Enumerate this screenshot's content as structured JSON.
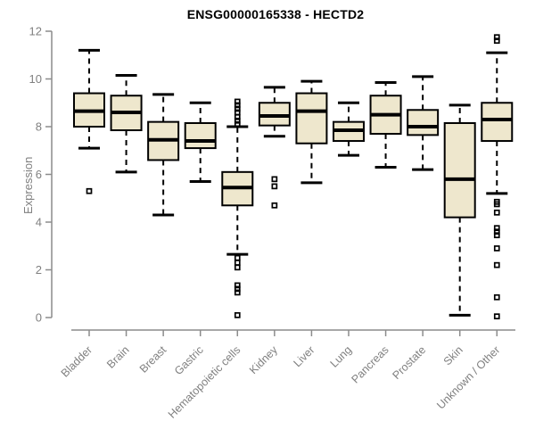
{
  "chart_data": {
    "type": "boxplot",
    "title": "ENSG00000165338 - HECTD2",
    "xlabel": "",
    "ylabel": "Expression",
    "ylim": [
      0,
      12
    ],
    "yticks": [
      0,
      2,
      4,
      6,
      8,
      10,
      12
    ],
    "grid": false,
    "legend": null,
    "categories": [
      "Bladder",
      "Brain",
      "Breast",
      "Gastric",
      "Hematopoietic cells",
      "Kidney",
      "Liver",
      "Lung",
      "Pancreas",
      "Prostate",
      "Skin",
      "Unknown / Other"
    ],
    "boxes": [
      {
        "category": "Bladder",
        "whisker_low": 7.1,
        "q1": 8.0,
        "median": 8.65,
        "q3": 9.4,
        "whisker_high": 11.2,
        "outliers": [
          5.3
        ]
      },
      {
        "category": "Brain",
        "whisker_low": 6.1,
        "q1": 7.85,
        "median": 8.6,
        "q3": 9.3,
        "whisker_high": 10.15,
        "outliers": []
      },
      {
        "category": "Breast",
        "whisker_low": 4.3,
        "q1": 6.6,
        "median": 7.45,
        "q3": 8.2,
        "whisker_high": 9.35,
        "outliers": []
      },
      {
        "category": "Gastric",
        "whisker_low": 5.7,
        "q1": 7.1,
        "median": 7.4,
        "q3": 8.15,
        "whisker_high": 9.0,
        "outliers": []
      },
      {
        "category": "Hematopoietic cells",
        "whisker_low": 2.65,
        "q1": 4.7,
        "median": 5.45,
        "q3": 6.1,
        "whisker_high": 8.0,
        "outliers": [
          9.05,
          8.9,
          8.75,
          8.6,
          8.4,
          8.25,
          8.1,
          2.5,
          2.3,
          2.1,
          1.35,
          1.2,
          1.05,
          0.1
        ]
      },
      {
        "category": "Kidney",
        "whisker_low": 7.6,
        "q1": 8.05,
        "median": 8.45,
        "q3": 9.0,
        "whisker_high": 9.65,
        "outliers": [
          5.8,
          5.5,
          4.7
        ]
      },
      {
        "category": "Liver",
        "whisker_low": 5.65,
        "q1": 7.3,
        "median": 8.65,
        "q3": 9.4,
        "whisker_high": 9.9,
        "outliers": []
      },
      {
        "category": "Lung",
        "whisker_low": 6.8,
        "q1": 7.4,
        "median": 7.85,
        "q3": 8.2,
        "whisker_high": 9.0,
        "outliers": []
      },
      {
        "category": "Pancreas",
        "whisker_low": 6.3,
        "q1": 7.7,
        "median": 8.5,
        "q3": 9.3,
        "whisker_high": 9.85,
        "outliers": []
      },
      {
        "category": "Prostate",
        "whisker_low": 6.2,
        "q1": 7.65,
        "median": 8.0,
        "q3": 8.7,
        "whisker_high": 10.1,
        "outliers": []
      },
      {
        "category": "Skin",
        "whisker_low": 0.1,
        "q1": 4.2,
        "median": 5.8,
        "q3": 8.15,
        "whisker_high": 8.9,
        "outliers": []
      },
      {
        "category": "Unknown / Other",
        "whisker_low": 5.2,
        "q1": 7.4,
        "median": 8.3,
        "q3": 9.0,
        "whisker_high": 11.1,
        "outliers": [
          11.75,
          11.6,
          4.85,
          4.75,
          4.4,
          3.75,
          3.6,
          3.45,
          2.9,
          2.2,
          0.85,
          0.05
        ]
      }
    ],
    "colors": {
      "box_fill": "#EEE7CD",
      "box_border": "#000000",
      "median": "#000000",
      "whisker": "#000000",
      "outlier": "#000000",
      "axis": "#8C8C8C",
      "tick_label": "#808080",
      "title": "#000000"
    }
  }
}
